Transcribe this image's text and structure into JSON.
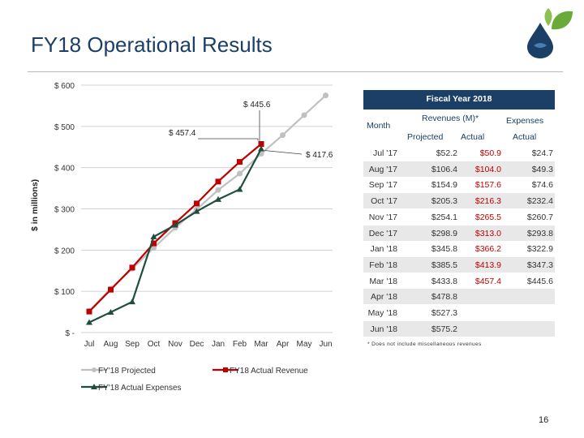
{
  "slide": {
    "title": "FY18 Operational Results",
    "page_number": "16"
  },
  "colors": {
    "brand_navy": "#1b3f66",
    "projected": "#c0c0c0",
    "actual_revenue": "#c00000",
    "actual_expenses": "#1f4e3d",
    "logo_green": "#6aaa3a"
  },
  "chart_data": {
    "type": "line",
    "ylabel": "$ in millions)",
    "y_ticks": [
      "$ 600",
      "$ 500",
      "$ 400",
      "$ 300",
      "$ 200",
      "$ 100",
      "$ -"
    ],
    "ylim": [
      0,
      600
    ],
    "categories": [
      "Jul",
      "Aug",
      "Sep",
      "Oct",
      "Nov",
      "Dec",
      "Jan",
      "Feb",
      "Mar",
      "Apr",
      "May",
      "Jun"
    ],
    "series": [
      {
        "name": "FY'18 Projected",
        "color": "#c0c0c0",
        "marker": "circle",
        "values": [
          52.2,
          106.4,
          154.9,
          205.3,
          254.1,
          298.9,
          345.8,
          385.5,
          433.8,
          478.8,
          527.3,
          575.2
        ]
      },
      {
        "name": "FY18 Actual Revenue",
        "color": "#c00000",
        "marker": "square",
        "values": [
          50.9,
          104.0,
          157.6,
          216.3,
          265.5,
          313.0,
          366.2,
          413.9,
          457.4,
          null,
          null,
          null
        ]
      },
      {
        "name": "FY'18 Actual Expenses",
        "color": "#1f4e3d",
        "marker": "triangle",
        "values": [
          24.7,
          49.3,
          74.6,
          232.4,
          260.7,
          293.8,
          322.9,
          347.3,
          445.6,
          null,
          null,
          null
        ]
      }
    ],
    "annotations": [
      "$ 445.6",
      "$ 457.4",
      "$ 417.6"
    ],
    "legend_position": "bottom"
  },
  "table": {
    "title": "Fiscal Year 2018",
    "col_month": "Month",
    "group_revenues": "Revenues (M)*",
    "group_expenses": "Expenses",
    "sub_projected": "Projected",
    "sub_actual": "Actual",
    "sub_actual_exp": "Actual",
    "rows": [
      {
        "month": "Jul '17",
        "projected": "$52.2",
        "actual": "$50.9",
        "expenses": "$24.7"
      },
      {
        "month": "Aug '17",
        "projected": "$106.4",
        "actual": "$104.0",
        "expenses": "$49.3"
      },
      {
        "month": "Sep '17",
        "projected": "$154.9",
        "actual": "$157.6",
        "expenses": "$74.6"
      },
      {
        "month": "Oct '17",
        "projected": "$205.3",
        "actual": "$216.3",
        "expenses": "$232.4"
      },
      {
        "month": "Nov '17",
        "projected": "$254.1",
        "actual": "$265.5",
        "expenses": "$260.7"
      },
      {
        "month": "Dec '17",
        "projected": "$298.9",
        "actual": "$313.0",
        "expenses": "$293.8"
      },
      {
        "month": "Jan '18",
        "projected": "$345.8",
        "actual": "$366.2",
        "expenses": "$322.9"
      },
      {
        "month": "Feb '18",
        "projected": "$385.5",
        "actual": "$413.9",
        "expenses": "$347.3"
      },
      {
        "month": "Mar '18",
        "projected": "$433.8",
        "actual": "$457.4",
        "expenses": "$445.6"
      },
      {
        "month": "Apr '18",
        "projected": "$478.8",
        "actual": "",
        "expenses": ""
      },
      {
        "month": "May '18",
        "projected": "$527.3",
        "actual": "",
        "expenses": ""
      },
      {
        "month": "Jun '18",
        "projected": "$575.2",
        "actual": "",
        "expenses": ""
      }
    ],
    "footnote": "* Does not include miscellaneous revenues"
  }
}
